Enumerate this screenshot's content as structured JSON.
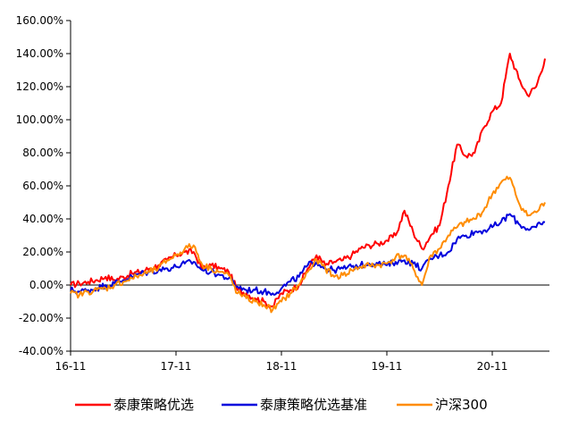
{
  "chart_data": {
    "type": "line",
    "title": "",
    "xlabel": "",
    "ylabel": "",
    "ylim": [
      -40,
      160
    ],
    "y_ticks": [
      -40,
      -20,
      0,
      20,
      40,
      60,
      80,
      100,
      120,
      140,
      160
    ],
    "y_tick_labels": [
      "-40.00%",
      "-20.00%",
      "0.00%",
      "20.00%",
      "40.00%",
      "60.00%",
      "80.00%",
      "100.00%",
      "120.00%",
      "140.00%",
      "160.00%"
    ],
    "x_ticks": [
      "16-11",
      "17-11",
      "18-11",
      "19-11",
      "20-11"
    ],
    "x_range_months": [
      "2016-11",
      "2021-05"
    ],
    "grid": false,
    "legend_position": "bottom",
    "series": [
      {
        "name": "泰康策略优选",
        "color": "#ff0000",
        "x": [
          "2016-11",
          "2016-12",
          "2017-01",
          "2017-02",
          "2017-03",
          "2017-04",
          "2017-05",
          "2017-06",
          "2017-07",
          "2017-08",
          "2017-09",
          "2017-10",
          "2017-11",
          "2017-12",
          "2018-01",
          "2018-02",
          "2018-03",
          "2018-04",
          "2018-05",
          "2018-06",
          "2018-07",
          "2018-08",
          "2018-09",
          "2018-10",
          "2018-11",
          "2018-12",
          "2019-01",
          "2019-02",
          "2019-03",
          "2019-04",
          "2019-05",
          "2019-06",
          "2019-07",
          "2019-08",
          "2019-09",
          "2019-10",
          "2019-11",
          "2019-12",
          "2020-01",
          "2020-02",
          "2020-03",
          "2020-04",
          "2020-05",
          "2020-06",
          "2020-07",
          "2020-08",
          "2020-09",
          "2020-10",
          "2020-11",
          "2020-12",
          "2021-01",
          "2021-02",
          "2021-03",
          "2021-04",
          "2021-05"
        ],
        "values": [
          0,
          1,
          2,
          3,
          5,
          3,
          5,
          7,
          8,
          10,
          12,
          15,
          18,
          20,
          20,
          10,
          12,
          10,
          8,
          -3,
          -5,
          -8,
          -10,
          -13,
          -5,
          -3,
          0,
          10,
          18,
          12,
          14,
          15,
          18,
          22,
          24,
          25,
          27,
          30,
          45,
          32,
          22,
          30,
          36,
          60,
          85,
          78,
          80,
          95,
          105,
          110,
          140,
          125,
          115,
          120,
          137
        ]
      },
      {
        "name": "泰康策略优选基准",
        "color": "#0000dd",
        "x": [
          "2016-11",
          "2016-12",
          "2017-01",
          "2017-02",
          "2017-03",
          "2017-04",
          "2017-05",
          "2017-06",
          "2017-07",
          "2017-08",
          "2017-09",
          "2017-10",
          "2017-11",
          "2017-12",
          "2018-01",
          "2018-02",
          "2018-03",
          "2018-04",
          "2018-05",
          "2018-06",
          "2018-07",
          "2018-08",
          "2018-09",
          "2018-10",
          "2018-11",
          "2018-12",
          "2019-01",
          "2019-02",
          "2019-03",
          "2019-04",
          "2019-05",
          "2019-06",
          "2019-07",
          "2019-08",
          "2019-09",
          "2019-10",
          "2019-11",
          "2019-12",
          "2020-01",
          "2020-02",
          "2020-03",
          "2020-04",
          "2020-05",
          "2020-06",
          "2020-07",
          "2020-08",
          "2020-09",
          "2020-10",
          "2020-11",
          "2020-12",
          "2021-01",
          "2021-02",
          "2021-03",
          "2021-04",
          "2021-05"
        ],
        "values": [
          -3,
          -4,
          -3,
          -2,
          0,
          1,
          3,
          5,
          7,
          8,
          9,
          10,
          11,
          13,
          14,
          9,
          8,
          6,
          4,
          -1,
          -3,
          -3,
          -4,
          -5,
          -2,
          2,
          5,
          12,
          14,
          10,
          9,
          10,
          11,
          12,
          13,
          13,
          12,
          14,
          15,
          13,
          10,
          16,
          18,
          20,
          28,
          30,
          32,
          33,
          35,
          38,
          43,
          37,
          34,
          35,
          38
        ]
      },
      {
        "name": "沪深300",
        "color": "#ff8c00",
        "x": [
          "2016-11",
          "2016-12",
          "2017-01",
          "2017-02",
          "2017-03",
          "2017-04",
          "2017-05",
          "2017-06",
          "2017-07",
          "2017-08",
          "2017-09",
          "2017-10",
          "2017-11",
          "2017-12",
          "2018-01",
          "2018-02",
          "2018-03",
          "2018-04",
          "2018-05",
          "2018-06",
          "2018-07",
          "2018-08",
          "2018-09",
          "2018-10",
          "2018-11",
          "2018-12",
          "2019-01",
          "2019-02",
          "2019-03",
          "2019-04",
          "2019-05",
          "2019-06",
          "2019-07",
          "2019-08",
          "2019-09",
          "2019-10",
          "2019-11",
          "2019-12",
          "2020-01",
          "2020-02",
          "2020-03",
          "2020-04",
          "2020-05",
          "2020-06",
          "2020-07",
          "2020-08",
          "2020-09",
          "2020-10",
          "2020-11",
          "2020-12",
          "2021-01",
          "2021-02",
          "2021-03",
          "2021-04",
          "2021-05"
        ],
        "values": [
          -5,
          -6,
          -4,
          -3,
          -2,
          0,
          2,
          4,
          6,
          8,
          10,
          15,
          18,
          22,
          24,
          12,
          10,
          8,
          6,
          -5,
          -8,
          -10,
          -12,
          -15,
          -10,
          -5,
          0,
          8,
          15,
          10,
          5,
          6,
          9,
          11,
          12,
          12,
          13,
          17,
          18,
          10,
          0,
          18,
          22,
          30,
          35,
          38,
          40,
          45,
          55,
          62,
          65,
          50,
          42,
          44,
          50
        ]
      }
    ]
  }
}
